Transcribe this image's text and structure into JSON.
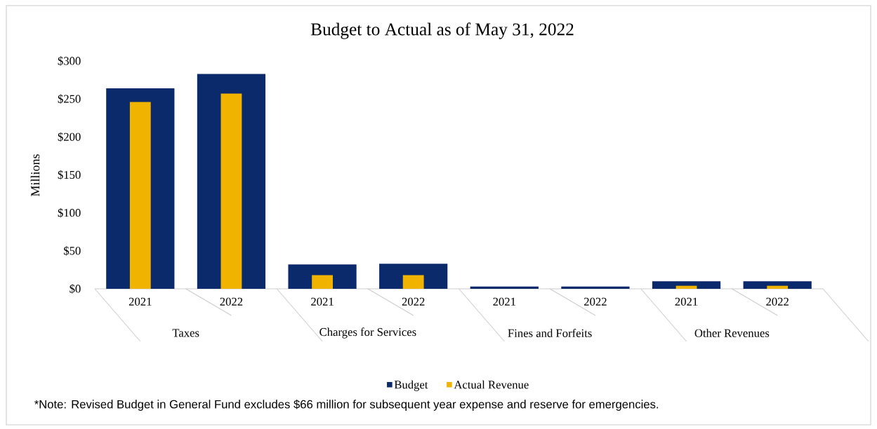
{
  "chart_data": {
    "type": "bar",
    "title": "Budget to Actual as of May 31, 2022",
    "ylabel": "Millions",
    "categories": [
      "2021",
      "2022",
      "2021",
      "2022",
      "2021",
      "2022",
      "2021",
      "2022"
    ],
    "series": [
      {
        "name": "Budget",
        "color": "#0b2a6b",
        "values": [
          264,
          283,
          32,
          33,
          3,
          3,
          10,
          10
        ]
      },
      {
        "name": "Actual Revenue",
        "color": "#f0b400",
        "values": [
          246,
          257,
          18,
          18,
          null,
          null,
          4,
          4
        ]
      }
    ],
    "ylim": [
      0,
      300
    ],
    "yticks": [
      {
        "value": 0,
        "label": "$0"
      },
      {
        "value": 50,
        "label": "$50"
      },
      {
        "value": 100,
        "label": "$100"
      },
      {
        "value": 150,
        "label": "$150"
      },
      {
        "value": 200,
        "label": "$200"
      },
      {
        "value": 250,
        "label": "$250"
      },
      {
        "value": 300,
        "label": "$300"
      }
    ],
    "annotations": [
      "Taxes",
      "Charges for Services",
      "Fines and Forfeits",
      "Other Revenues",
      "*Note: Revised Budget in General Fund excludes $66 million for subsequent year expense and reserve for emergencies."
    ],
    "legend": "bottom",
    "grid": false
  }
}
